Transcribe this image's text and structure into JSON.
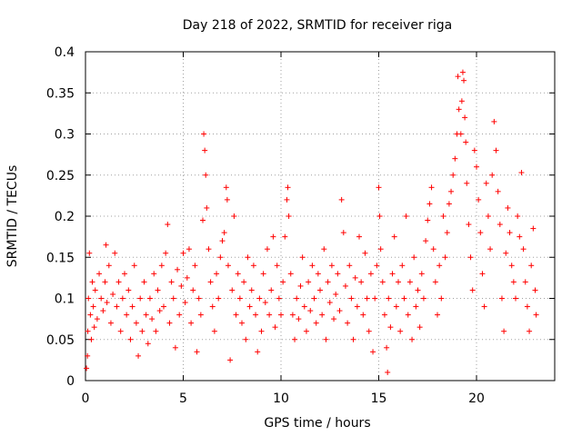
{
  "chart_data": {
    "type": "scatter",
    "title": "Day 218 of 2022, SRMTID for receiver riga",
    "xlabel": "GPS time / hours",
    "ylabel": "SRMTID / TECUs",
    "xlim": [
      0,
      24
    ],
    "ylim": [
      0,
      0.4
    ],
    "xticks": [
      0,
      5,
      10,
      15,
      20
    ],
    "yticks": [
      0,
      0.05,
      0.1,
      0.15,
      0.2,
      0.25,
      0.3,
      0.35,
      0.4
    ],
    "xtick_labels": [
      "0",
      "5",
      "10",
      "15",
      "20"
    ],
    "ytick_labels": [
      "0",
      "0.05",
      "0.1",
      "0.15",
      "0.2",
      "0.25",
      "0.3",
      "0.35",
      "0.4"
    ],
    "grid": true,
    "marker": "+",
    "color": "#ff0000",
    "series": [
      {
        "name": "riga",
        "points": [
          [
            0.05,
            0.015
          ],
          [
            0.1,
            0.03
          ],
          [
            0.12,
            0.06
          ],
          [
            0.15,
            0.1
          ],
          [
            0.2,
            0.155
          ],
          [
            0.25,
            0.08
          ],
          [
            0.3,
            0.05
          ],
          [
            0.35,
            0.12
          ],
          [
            0.4,
            0.09
          ],
          [
            0.45,
            0.065
          ],
          [
            0.5,
            0.11
          ],
          [
            0.6,
            0.075
          ],
          [
            0.7,
            0.13
          ],
          [
            0.8,
            0.1
          ],
          [
            0.9,
            0.085
          ],
          [
            1.0,
            0.12
          ],
          [
            1.05,
            0.165
          ],
          [
            1.1,
            0.095
          ],
          [
            1.2,
            0.14
          ],
          [
            1.3,
            0.07
          ],
          [
            1.4,
            0.105
          ],
          [
            1.5,
            0.155
          ],
          [
            1.6,
            0.09
          ],
          [
            1.7,
            0.12
          ],
          [
            1.8,
            0.06
          ],
          [
            1.9,
            0.1
          ],
          [
            2.0,
            0.13
          ],
          [
            2.1,
            0.08
          ],
          [
            2.2,
            0.11
          ],
          [
            2.3,
            0.05
          ],
          [
            2.4,
            0.09
          ],
          [
            2.5,
            0.14
          ],
          [
            2.6,
            0.07
          ],
          [
            2.7,
            0.03
          ],
          [
            2.8,
            0.1
          ],
          [
            2.9,
            0.06
          ],
          [
            3.0,
            0.12
          ],
          [
            3.1,
            0.08
          ],
          [
            3.2,
            0.045
          ],
          [
            3.3,
            0.1
          ],
          [
            3.4,
            0.075
          ],
          [
            3.5,
            0.13
          ],
          [
            3.6,
            0.06
          ],
          [
            3.7,
            0.11
          ],
          [
            3.8,
            0.085
          ],
          [
            3.9,
            0.14
          ],
          [
            4.0,
            0.09
          ],
          [
            4.1,
            0.155
          ],
          [
            4.2,
            0.19
          ],
          [
            4.3,
            0.07
          ],
          [
            4.4,
            0.12
          ],
          [
            4.5,
            0.1
          ],
          [
            4.6,
            0.04
          ],
          [
            4.7,
            0.135
          ],
          [
            4.8,
            0.08
          ],
          [
            4.9,
            0.115
          ],
          [
            5.0,
            0.155
          ],
          [
            5.1,
            0.095
          ],
          [
            5.2,
            0.125
          ],
          [
            5.3,
            0.16
          ],
          [
            5.4,
            0.07
          ],
          [
            5.5,
            0.11
          ],
          [
            5.6,
            0.14
          ],
          [
            5.7,
            0.035
          ],
          [
            5.8,
            0.1
          ],
          [
            5.9,
            0.08
          ],
          [
            6.0,
            0.195
          ],
          [
            6.05,
            0.3
          ],
          [
            6.1,
            0.28
          ],
          [
            6.15,
            0.25
          ],
          [
            6.2,
            0.21
          ],
          [
            6.3,
            0.16
          ],
          [
            6.4,
            0.12
          ],
          [
            6.5,
            0.09
          ],
          [
            6.6,
            0.06
          ],
          [
            6.7,
            0.13
          ],
          [
            6.8,
            0.1
          ],
          [
            6.9,
            0.15
          ],
          [
            7.0,
            0.17
          ],
          [
            7.1,
            0.18
          ],
          [
            7.2,
            0.235
          ],
          [
            7.25,
            0.22
          ],
          [
            7.3,
            0.14
          ],
          [
            7.4,
            0.025
          ],
          [
            7.5,
            0.11
          ],
          [
            7.6,
            0.2
          ],
          [
            7.7,
            0.08
          ],
          [
            7.8,
            0.13
          ],
          [
            7.9,
            0.1
          ],
          [
            8.0,
            0.07
          ],
          [
            8.1,
            0.12
          ],
          [
            8.2,
            0.05
          ],
          [
            8.3,
            0.15
          ],
          [
            8.4,
            0.09
          ],
          [
            8.5,
            0.11
          ],
          [
            8.6,
            0.14
          ],
          [
            8.7,
            0.08
          ],
          [
            8.8,
            0.035
          ],
          [
            8.9,
            0.1
          ],
          [
            9.0,
            0.06
          ],
          [
            9.1,
            0.13
          ],
          [
            9.2,
            0.095
          ],
          [
            9.3,
            0.16
          ],
          [
            9.4,
            0.08
          ],
          [
            9.5,
            0.11
          ],
          [
            9.6,
            0.175
          ],
          [
            9.7,
            0.065
          ],
          [
            9.8,
            0.14
          ],
          [
            9.9,
            0.1
          ],
          [
            10.0,
            0.08
          ],
          [
            10.1,
            0.12
          ],
          [
            10.2,
            0.175
          ],
          [
            10.3,
            0.22
          ],
          [
            10.35,
            0.235
          ],
          [
            10.4,
            0.2
          ],
          [
            10.5,
            0.13
          ],
          [
            10.6,
            0.08
          ],
          [
            10.7,
            0.05
          ],
          [
            10.8,
            0.1
          ],
          [
            10.9,
            0.075
          ],
          [
            11.0,
            0.115
          ],
          [
            11.1,
            0.15
          ],
          [
            11.2,
            0.09
          ],
          [
            11.3,
            0.06
          ],
          [
            11.4,
            0.12
          ],
          [
            11.5,
            0.085
          ],
          [
            11.6,
            0.14
          ],
          [
            11.7,
            0.1
          ],
          [
            11.8,
            0.07
          ],
          [
            11.9,
            0.13
          ],
          [
            12.0,
            0.11
          ],
          [
            12.1,
            0.08
          ],
          [
            12.2,
            0.16
          ],
          [
            12.3,
            0.05
          ],
          [
            12.4,
            0.12
          ],
          [
            12.5,
            0.095
          ],
          [
            12.6,
            0.14
          ],
          [
            12.7,
            0.075
          ],
          [
            12.8,
            0.105
          ],
          [
            12.9,
            0.13
          ],
          [
            13.0,
            0.085
          ],
          [
            13.1,
            0.22
          ],
          [
            13.2,
            0.18
          ],
          [
            13.3,
            0.115
          ],
          [
            13.4,
            0.07
          ],
          [
            13.5,
            0.14
          ],
          [
            13.6,
            0.1
          ],
          [
            13.7,
            0.05
          ],
          [
            13.8,
            0.125
          ],
          [
            13.9,
            0.09
          ],
          [
            14.0,
            0.175
          ],
          [
            14.1,
            0.12
          ],
          [
            14.2,
            0.08
          ],
          [
            14.3,
            0.155
          ],
          [
            14.4,
            0.1
          ],
          [
            14.5,
            0.06
          ],
          [
            14.6,
            0.13
          ],
          [
            14.7,
            0.035
          ],
          [
            14.8,
            0.1
          ],
          [
            14.9,
            0.14
          ],
          [
            15.0,
            0.235
          ],
          [
            15.05,
            0.2
          ],
          [
            15.1,
            0.16
          ],
          [
            15.2,
            0.12
          ],
          [
            15.3,
            0.08
          ],
          [
            15.4,
            0.04
          ],
          [
            15.45,
            0.01
          ],
          [
            15.5,
            0.1
          ],
          [
            15.6,
            0.065
          ],
          [
            15.7,
            0.13
          ],
          [
            15.8,
            0.175
          ],
          [
            15.9,
            0.09
          ],
          [
            16.0,
            0.12
          ],
          [
            16.1,
            0.06
          ],
          [
            16.2,
            0.14
          ],
          [
            16.3,
            0.1
          ],
          [
            16.4,
            0.2
          ],
          [
            16.5,
            0.08
          ],
          [
            16.6,
            0.12
          ],
          [
            16.7,
            0.05
          ],
          [
            16.8,
            0.15
          ],
          [
            16.9,
            0.09
          ],
          [
            17.0,
            0.11
          ],
          [
            17.1,
            0.065
          ],
          [
            17.2,
            0.13
          ],
          [
            17.3,
            0.1
          ],
          [
            17.4,
            0.17
          ],
          [
            17.5,
            0.195
          ],
          [
            17.6,
            0.215
          ],
          [
            17.7,
            0.235
          ],
          [
            17.8,
            0.16
          ],
          [
            17.9,
            0.12
          ],
          [
            18.0,
            0.08
          ],
          [
            18.1,
            0.14
          ],
          [
            18.2,
            0.1
          ],
          [
            18.3,
            0.2
          ],
          [
            18.4,
            0.15
          ],
          [
            18.5,
            0.18
          ],
          [
            18.6,
            0.215
          ],
          [
            18.7,
            0.23
          ],
          [
            18.8,
            0.25
          ],
          [
            18.9,
            0.27
          ],
          [
            19.0,
            0.3
          ],
          [
            19.05,
            0.37
          ],
          [
            19.1,
            0.33
          ],
          [
            19.2,
            0.3
          ],
          [
            19.25,
            0.34
          ],
          [
            19.3,
            0.375
          ],
          [
            19.35,
            0.365
          ],
          [
            19.4,
            0.32
          ],
          [
            19.45,
            0.29
          ],
          [
            19.5,
            0.24
          ],
          [
            19.6,
            0.19
          ],
          [
            19.7,
            0.15
          ],
          [
            19.8,
            0.11
          ],
          [
            19.9,
            0.28
          ],
          [
            20.0,
            0.26
          ],
          [
            20.1,
            0.22
          ],
          [
            20.2,
            0.18
          ],
          [
            20.3,
            0.13
          ],
          [
            20.4,
            0.09
          ],
          [
            20.5,
            0.24
          ],
          [
            20.6,
            0.2
          ],
          [
            20.7,
            0.16
          ],
          [
            20.8,
            0.25
          ],
          [
            20.9,
            0.315
          ],
          [
            21.0,
            0.28
          ],
          [
            21.1,
            0.23
          ],
          [
            21.2,
            0.19
          ],
          [
            21.3,
            0.1
          ],
          [
            21.4,
            0.06
          ],
          [
            21.5,
            0.155
          ],
          [
            21.6,
            0.21
          ],
          [
            21.7,
            0.18
          ],
          [
            21.8,
            0.14
          ],
          [
            21.9,
            0.12
          ],
          [
            22.0,
            0.1
          ],
          [
            22.1,
            0.2
          ],
          [
            22.2,
            0.175
          ],
          [
            22.3,
            0.253
          ],
          [
            22.4,
            0.16
          ],
          [
            22.5,
            0.12
          ],
          [
            22.6,
            0.09
          ],
          [
            22.7,
            0.06
          ],
          [
            22.8,
            0.14
          ],
          [
            22.9,
            0.185
          ],
          [
            23.0,
            0.11
          ],
          [
            23.05,
            0.08
          ]
        ]
      }
    ]
  }
}
